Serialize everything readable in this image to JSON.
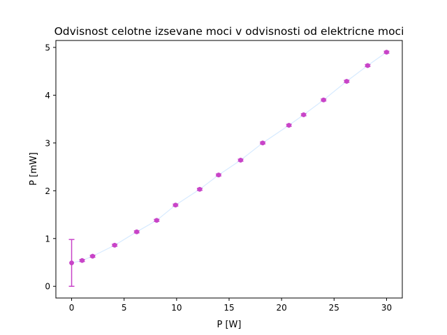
{
  "chart_data": {
    "type": "scatter",
    "title": "Odvisnost celotne izsevane moci v odvisnosti od elektricne moci",
    "xlabel": "P [W]",
    "ylabel": "P [mW]",
    "xlim": [
      -1.5,
      31.5
    ],
    "ylim": [
      -0.245,
      5.145
    ],
    "xticks": [
      0,
      5,
      10,
      15,
      20,
      25,
      30
    ],
    "yticks": [
      0,
      1,
      2,
      3,
      4,
      5
    ],
    "grid": false,
    "legend": "none",
    "colors": {
      "markers": "#c844c8",
      "line": "#d6eaff",
      "axes": "#000000"
    },
    "series": [
      {
        "x": [
          0,
          1.0,
          2.0,
          4.1,
          6.2,
          8.1,
          9.9,
          12.2,
          14.0,
          16.1,
          18.2,
          20.7,
          22.1,
          24.0,
          26.2,
          28.2,
          30.0
        ],
        "y": [
          0.49,
          0.54,
          0.63,
          0.86,
          1.14,
          1.38,
          1.7,
          2.03,
          2.33,
          2.64,
          3.0,
          3.37,
          3.59,
          3.9,
          4.29,
          4.62,
          4.9
        ],
        "yerr": [
          0.49,
          0.02,
          0.02,
          0.02,
          0.02,
          0.02,
          0.02,
          0.02,
          0.02,
          0.02,
          0.02,
          0.02,
          0.02,
          0.02,
          0.02,
          0.02,
          0.02
        ]
      }
    ]
  }
}
